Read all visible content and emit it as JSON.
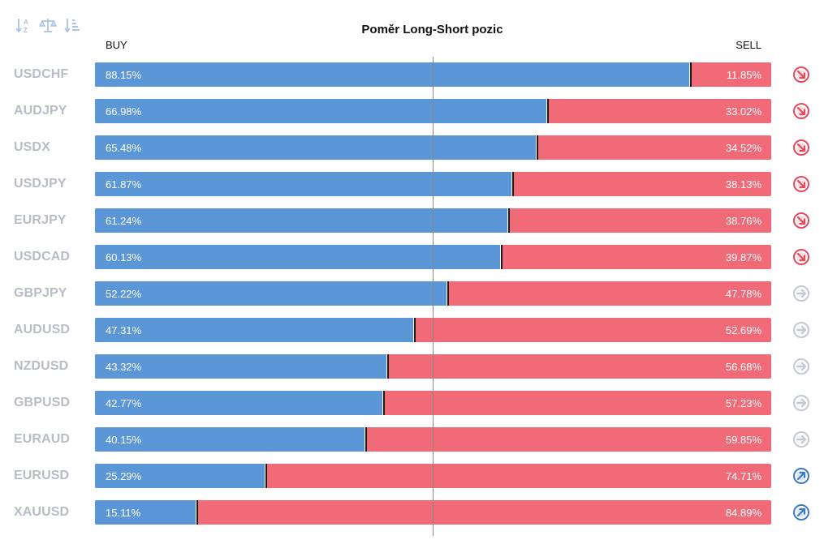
{
  "toolbar": {
    "icons": [
      "sort-alphabetical-icon",
      "balance-scale-icon",
      "sort-descending-icon"
    ],
    "color": "#a9c4e4"
  },
  "chart_data": {
    "type": "bar",
    "title": "Poměr Long-Short pozic",
    "buy_label": "BUY",
    "sell_label": "SELL",
    "categories": [
      "USDCHF",
      "AUDJPY",
      "USDX",
      "USDJPY",
      "EURJPY",
      "USDCAD",
      "GBPJPY",
      "AUDUSD",
      "NZDUSD",
      "GBPUSD",
      "EURAUD",
      "EURUSD",
      "XAUUSD"
    ],
    "series": [
      {
        "name": "BUY",
        "color": "#5b96d6",
        "values": [
          88.15,
          66.98,
          65.48,
          61.87,
          61.24,
          60.13,
          52.22,
          47.31,
          43.32,
          42.77,
          40.15,
          25.29,
          15.11
        ]
      },
      {
        "name": "SELL",
        "color": "#f06a78",
        "values": [
          11.85,
          33.02,
          34.52,
          38.13,
          38.76,
          39.87,
          47.78,
          52.69,
          56.68,
          57.23,
          59.85,
          74.71,
          84.89
        ]
      }
    ],
    "buy_labels": [
      "88.15%",
      "66.98%",
      "65.48%",
      "61.87%",
      "61.24%",
      "60.13%",
      "52.22%",
      "47.31%",
      "43.32%",
      "42.77%",
      "40.15%",
      "25.29%",
      "15.11%"
    ],
    "sell_labels": [
      "11.85%",
      "33.02%",
      "34.52%",
      "38.13%",
      "38.76%",
      "39.87%",
      "47.78%",
      "52.69%",
      "56.68%",
      "57.23%",
      "59.85%",
      "74.71%",
      "84.89%"
    ],
    "signals": [
      "down",
      "down",
      "down",
      "down",
      "down",
      "down",
      "neutral",
      "neutral",
      "neutral",
      "neutral",
      "neutral",
      "up",
      "up"
    ],
    "signal_colors": {
      "down": "#e44b5e",
      "neutral": "#c3c8d2",
      "up": "#3d7cc4"
    },
    "xlim": [
      0,
      100
    ],
    "stacked": true,
    "orientation": "horizontal"
  }
}
